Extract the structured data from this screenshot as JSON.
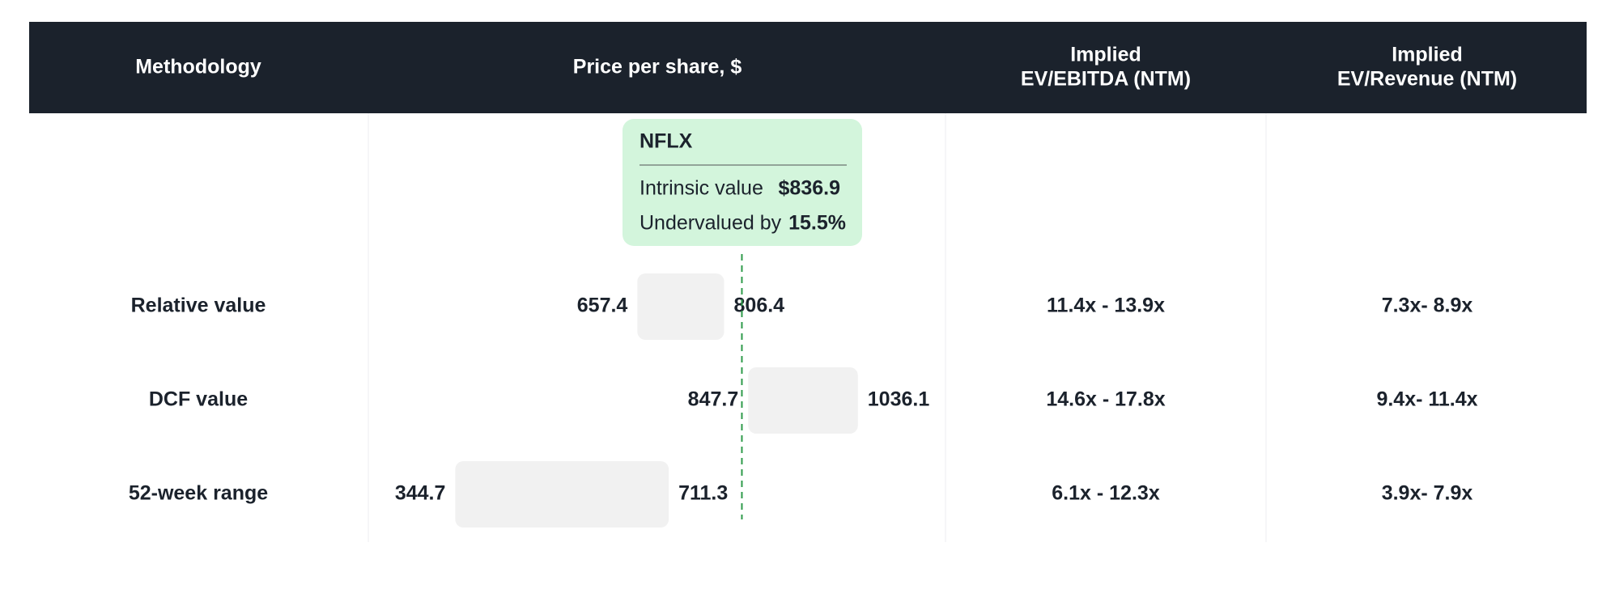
{
  "header": {
    "columns": [
      [
        "Methodology"
      ],
      [
        "Price per share, $"
      ],
      [
        "Implied",
        "EV/EBITDA (NTM)"
      ],
      [
        "Implied",
        "EV/Revenue (NTM)"
      ]
    ]
  },
  "callout": {
    "ticker": "NFLX",
    "intrinsic_label": "Intrinsic value",
    "intrinsic_value": {
      "value": 836.9,
      "label": "$836.9"
    },
    "undervalued_label": "Undervalued by",
    "undervalued_value": "15.5%"
  },
  "table": {
    "rows": [
      {
        "methodology": "Relative value",
        "low": 657.4,
        "high": 806.4,
        "ev_ebitda": "11.4x - 13.9x",
        "ev_revenue": "7.3x- 8.9x"
      },
      {
        "methodology": "DCF value",
        "low": 847.7,
        "high": 1036.1,
        "ev_ebitda": "14.6x - 17.8x",
        "ev_revenue": "9.4x- 11.4x"
      },
      {
        "methodology": "52-week range",
        "low": 344.7,
        "high": 711.3,
        "ev_ebitda": "6.1x - 12.3x",
        "ev_revenue": "3.9x- 7.9x"
      }
    ]
  }
}
